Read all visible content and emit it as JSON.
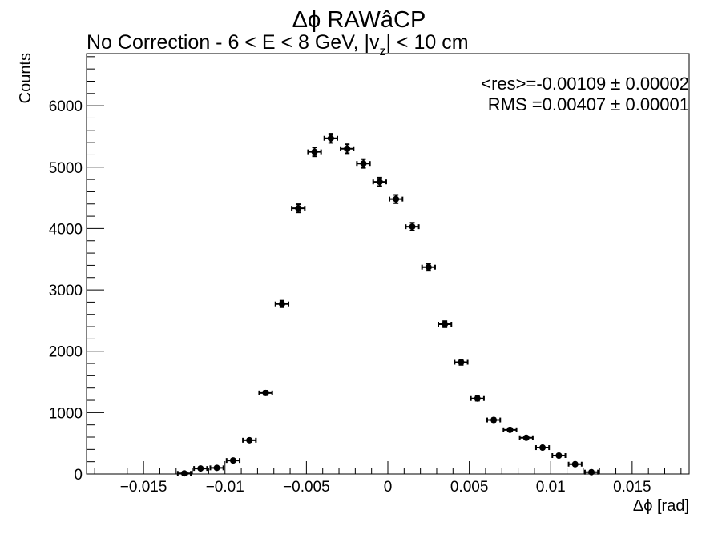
{
  "chart_data": {
    "type": "scatter",
    "title": "Δϕ RAWâCP",
    "subtitle_prefix": "No Correction   -   6 < E < 8 GeV, |v",
    "subtitle_sub": "z",
    "subtitle_suffix": "| < 10 cm",
    "xlabel": "Δϕ  [rad]",
    "ylabel": "Counts",
    "xlim": [
      -0.0185,
      0.0185
    ],
    "ylim": [
      0,
      6850
    ],
    "x_ticks": [
      -0.015,
      -0.01,
      -0.005,
      0,
      0.005,
      0.01,
      0.015
    ],
    "x_tick_labels": [
      "−0.015",
      "−0.01",
      "−0.005",
      "0",
      "0.005",
      "0.01",
      "0.015"
    ],
    "y_ticks": [
      0,
      1000,
      2000,
      3000,
      4000,
      5000,
      6000
    ],
    "y_tick_labels": [
      "0",
      "1000",
      "2000",
      "3000",
      "4000",
      "5000",
      "6000"
    ],
    "bin_half_width": 0.0004,
    "x": [
      -0.0125,
      -0.0115,
      -0.0105,
      -0.0095,
      -0.0085,
      -0.0075,
      -0.0065,
      -0.0055,
      -0.0045,
      -0.0035,
      -0.0025,
      -0.0015,
      -0.0005,
      0.0005,
      0.0015,
      0.0025,
      0.0035,
      0.0045,
      0.0055,
      0.0065,
      0.0075,
      0.0085,
      0.0095,
      0.0105,
      0.0115,
      0.0125
    ],
    "y": [
      10,
      90,
      100,
      220,
      550,
      1320,
      2770,
      4330,
      5250,
      5470,
      5300,
      5060,
      4760,
      4480,
      4030,
      3370,
      2440,
      1820,
      1230,
      880,
      720,
      590,
      430,
      300,
      160,
      30
    ],
    "stats": {
      "mean_label": "<res>=-0.00109 ± 0.00002",
      "rms_label": "RMS =0.00407 ± 0.00001"
    },
    "marker_color": "#000000",
    "grid": false,
    "legend": "none"
  }
}
